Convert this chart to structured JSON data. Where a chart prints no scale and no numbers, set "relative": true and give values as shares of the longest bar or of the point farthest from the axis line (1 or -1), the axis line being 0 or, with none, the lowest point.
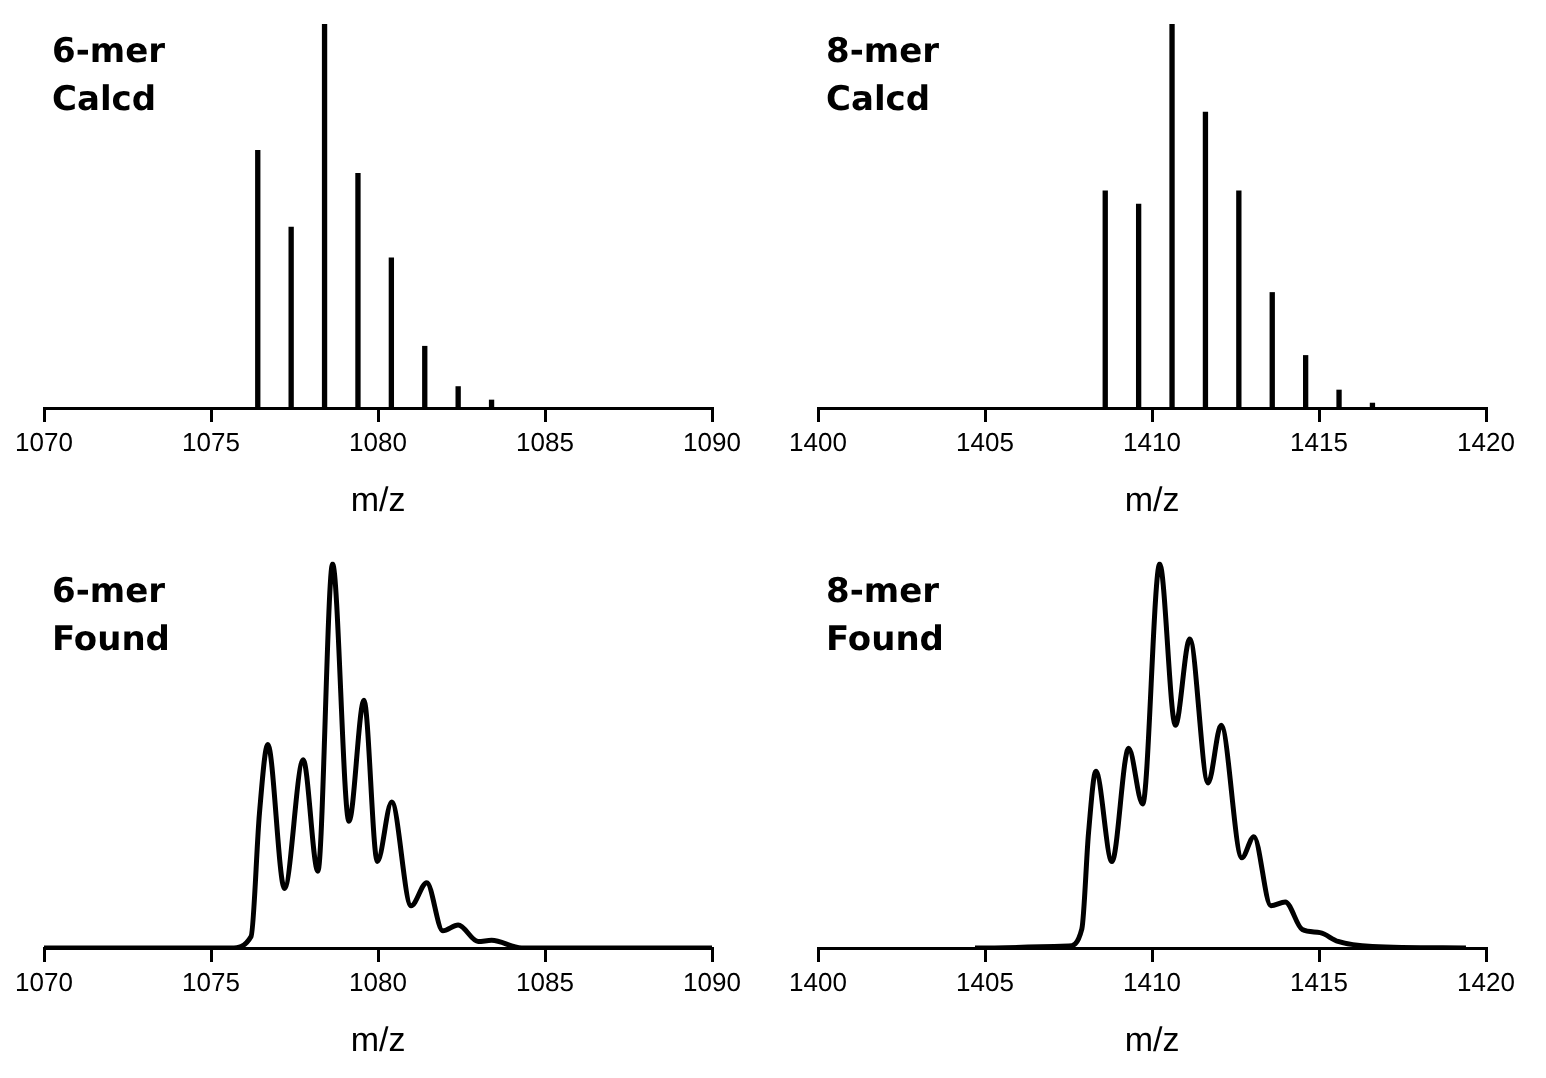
{
  "chart_data": [
    {
      "type": "bar",
      "title": "6-mer",
      "subtitle": "Calcd",
      "xlabel": "m/z",
      "relative": true,
      "tick_labels": "x",
      "color": "#000000",
      "xlim": [
        1070,
        1090
      ],
      "xticks": [
        1070,
        1075,
        1080,
        1085,
        1090
      ],
      "x": [
        1076.4,
        1077.4,
        1078.4,
        1079.4,
        1080.4,
        1081.4,
        1082.4,
        1083.4
      ],
      "values": [
        0.67,
        0.47,
        1,
        0.61,
        0.39,
        0.16,
        0.055,
        0.02
      ]
    },
    {
      "type": "bar",
      "title": "8-mer",
      "subtitle": "Calcd",
      "xlabel": "m/z",
      "relative": true,
      "tick_labels": "x",
      "color": "#000000",
      "xlim": [
        1400,
        1420
      ],
      "xticks": [
        1400,
        1405,
        1410,
        1415,
        1420
      ],
      "x": [
        1408.6,
        1409.6,
        1410.6,
        1411.6,
        1412.6,
        1413.6,
        1414.6,
        1415.6,
        1416.6
      ],
      "values": [
        0.565,
        0.53,
        1,
        0.77,
        0.565,
        0.3,
        0.136,
        0.046,
        0.012
      ]
    },
    {
      "type": "line",
      "title": "6-mer",
      "subtitle": "Found",
      "xlabel": "m/z",
      "relative": true,
      "tick_labels": "x",
      "marker": "none",
      "color": "#000000",
      "xlim": [
        1070,
        1090
      ],
      "xticks": [
        1070,
        1075,
        1080,
        1085,
        1090
      ],
      "x": [
        1070,
        1075.6,
        1076.2,
        1076.45,
        1076.7,
        1077.2,
        1077.76,
        1078.2,
        1078.64,
        1079.13,
        1079.58,
        1079.98,
        1080.41,
        1080.99,
        1081.46,
        1081.94,
        1082.4,
        1083.0,
        1083.4,
        1084.3,
        1090
      ],
      "values": [
        0,
        0,
        0.03,
        0.35,
        0.53,
        0.155,
        0.49,
        0.2,
        1,
        0.33,
        0.645,
        0.225,
        0.38,
        0.11,
        0.17,
        0.045,
        0.06,
        0.017,
        0.02,
        0,
        0
      ]
    },
    {
      "type": "line",
      "title": "8-mer",
      "subtitle": "Found",
      "xlabel": "m/z",
      "relative": true,
      "tick_labels": "x",
      "marker": "none",
      "color": "#000000",
      "xlim": [
        1400,
        1420
      ],
      "xticks": [
        1400,
        1405,
        1410,
        1415,
        1420
      ],
      "x": [
        1404.7,
        1407.5,
        1407.9,
        1408.1,
        1408.32,
        1408.8,
        1409.3,
        1409.72,
        1410.23,
        1410.7,
        1411.13,
        1411.68,
        1412.07,
        1412.69,
        1413.05,
        1413.56,
        1413.99,
        1414.5,
        1415.03,
        1415.57,
        1416.6,
        1419.4
      ],
      "values": [
        0,
        0.005,
        0.05,
        0.3,
        0.46,
        0.225,
        0.52,
        0.375,
        1,
        0.58,
        0.805,
        0.43,
        0.58,
        0.235,
        0.29,
        0.11,
        0.12,
        0.048,
        0.04,
        0.017,
        0.004,
        0
      ]
    }
  ]
}
